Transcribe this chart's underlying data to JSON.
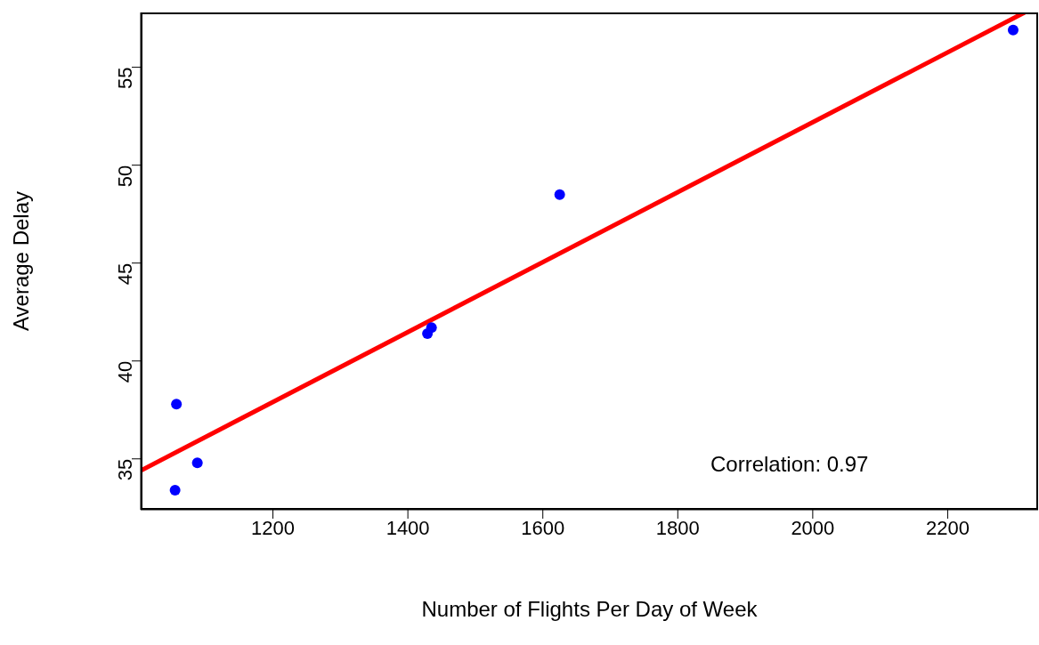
{
  "chart_data": {
    "type": "scatter",
    "xlabel": "Number of Flights Per Day of Week",
    "ylabel": "Average Delay",
    "series": [
      {
        "color": "#0000ff",
        "marker": "circle",
        "x": [
          1057,
          1055,
          1088,
          1429,
          1435,
          1625,
          2297
        ],
        "values": [
          37.8,
          33.4,
          34.8,
          41.4,
          41.7,
          48.5,
          56.9
        ]
      },
      {
        "type": "line",
        "marker": "none",
        "color": "#ff0000",
        "x": [
          1004,
          2314
        ],
        "values": [
          34.4,
          57.8
        ]
      }
    ],
    "xlim": [
      1004,
      2334
    ],
    "xticks": [
      1200,
      1400,
      1600,
      1800,
      2000,
      2200
    ],
    "ylim": [
      32.4,
      57.8
    ],
    "yticks": [
      35,
      40,
      45,
      50,
      55
    ],
    "annotations": [
      "Correlation: 0.97"
    ]
  }
}
